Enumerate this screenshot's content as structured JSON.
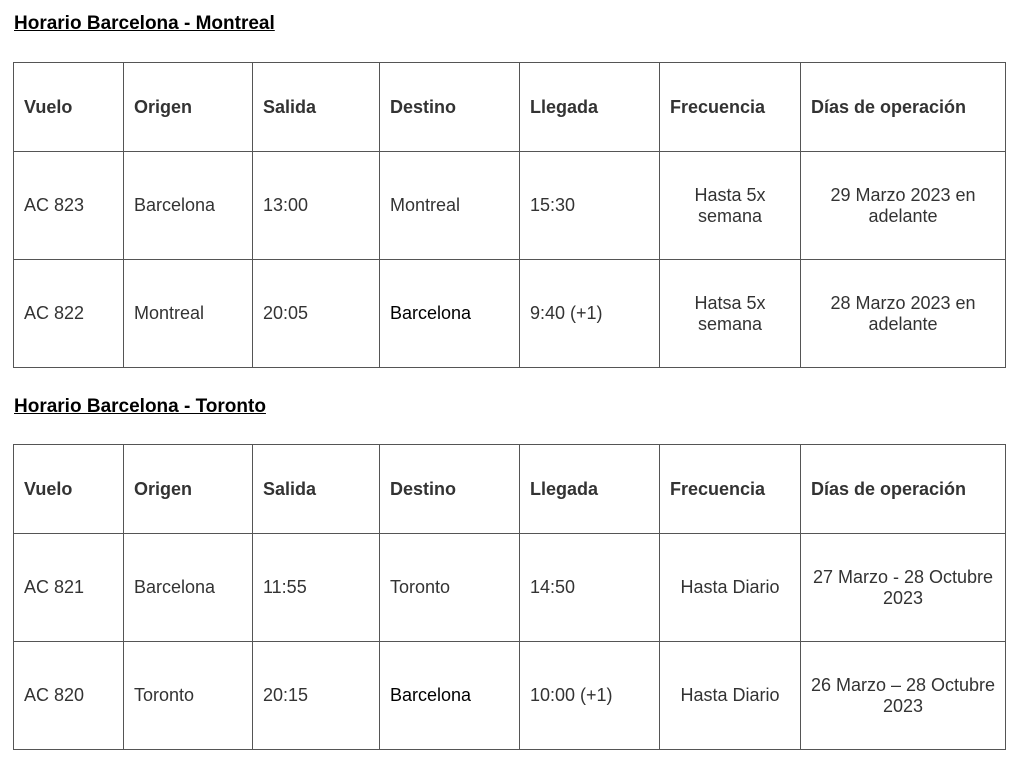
{
  "tables": [
    {
      "title": "Horario Barcelona - Montreal",
      "headers": [
        "Vuelo",
        "Origen",
        "Salida",
        "Destino",
        "Llegada",
        "Frecuencia",
        "Días de operación"
      ],
      "rows": [
        [
          "AC 823",
          "Barcelona",
          "13:00",
          "Montreal",
          "15:30",
          "Hasta 5x semana",
          "29 Marzo 2023 en adelante"
        ],
        [
          "AC 822",
          "Montreal",
          "20:05",
          "Barcelona",
          "9:40 (+1)",
          "Hatsa 5x semana",
          "28 Marzo 2023 en adelante"
        ]
      ]
    },
    {
      "title": "Horario Barcelona - Toronto",
      "headers": [
        "Vuelo",
        "Origen",
        "Salida",
        "Destino",
        "Llegada",
        "Frecuencia",
        "Días de operación"
      ],
      "rows": [
        [
          "AC 821",
          "Barcelona",
          "11:55",
          "Toronto",
          "14:50",
          "Hasta Diario",
          "27 Marzo - 28 Octubre 2023"
        ],
        [
          "AC 820",
          "Toronto",
          "20:15",
          "Barcelona",
          "10:00 (+1)",
          "Hasta Diario",
          "26 Marzo – 28 Octubre 2023"
        ]
      ]
    }
  ]
}
